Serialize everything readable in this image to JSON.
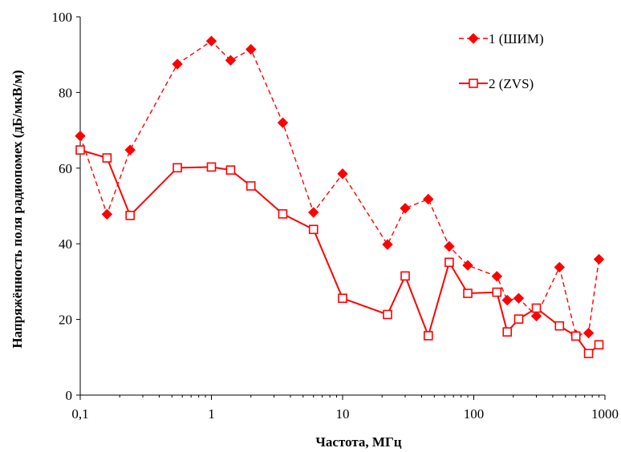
{
  "chart_data": {
    "type": "line",
    "xlabel": "Частота, МГц",
    "ylabel": "Напряжённость поля радиопомех (дБ/мкВ/м)",
    "x_scale": "log",
    "xlim": [
      0.1,
      1000
    ],
    "ylim": [
      0,
      100
    ],
    "x_ticks": [
      0.1,
      1,
      10,
      100,
      1000
    ],
    "x_tick_labels": [
      "0,1",
      "1",
      "10",
      "100",
      "1000"
    ],
    "y_ticks": [
      0,
      20,
      40,
      60,
      80,
      100
    ],
    "y_tick_labels": [
      "0",
      "20",
      "40",
      "60",
      "80",
      "100"
    ],
    "grid": false,
    "legend_position": "top-right",
    "colors": {
      "series": "#ff0000",
      "axis": "#000000"
    },
    "series": [
      {
        "name": "1 (ШИМ)",
        "style": "dashed",
        "marker": "diamond-filled",
        "x": [
          0.1,
          0.16,
          0.24,
          0.55,
          1.0,
          1.4,
          2.0,
          3.5,
          6.0,
          10.0,
          22.0,
          30.0,
          45.0,
          65.0,
          90.0,
          150.0,
          180.0,
          220.0,
          300.0,
          450.0,
          600.0,
          750.0,
          900.0
        ],
        "y": [
          68.5,
          47.8,
          64.8,
          87.5,
          93.6,
          88.5,
          91.4,
          72.0,
          48.3,
          58.5,
          39.8,
          49.4,
          51.8,
          39.3,
          34.3,
          31.4,
          25.1,
          25.6,
          20.9,
          33.8,
          15.9,
          16.4,
          35.9
        ]
      },
      {
        "name": "2 (ZVS)",
        "style": "solid",
        "marker": "square-open",
        "x": [
          0.1,
          0.16,
          0.24,
          0.55,
          1.0,
          1.4,
          2.0,
          3.5,
          6.0,
          10.0,
          22.0,
          30.0,
          45.0,
          65.0,
          90.0,
          150.0,
          180.0,
          220.0,
          300.0,
          450.0,
          600.0,
          750.0,
          900.0
        ],
        "y": [
          64.8,
          62.7,
          47.5,
          60.1,
          60.3,
          59.5,
          55.3,
          47.9,
          43.8,
          25.6,
          21.3,
          31.5,
          15.7,
          35.1,
          26.9,
          27.2,
          16.7,
          20.1,
          23.0,
          18.3,
          15.6,
          11.0,
          13.3
        ]
      }
    ]
  }
}
